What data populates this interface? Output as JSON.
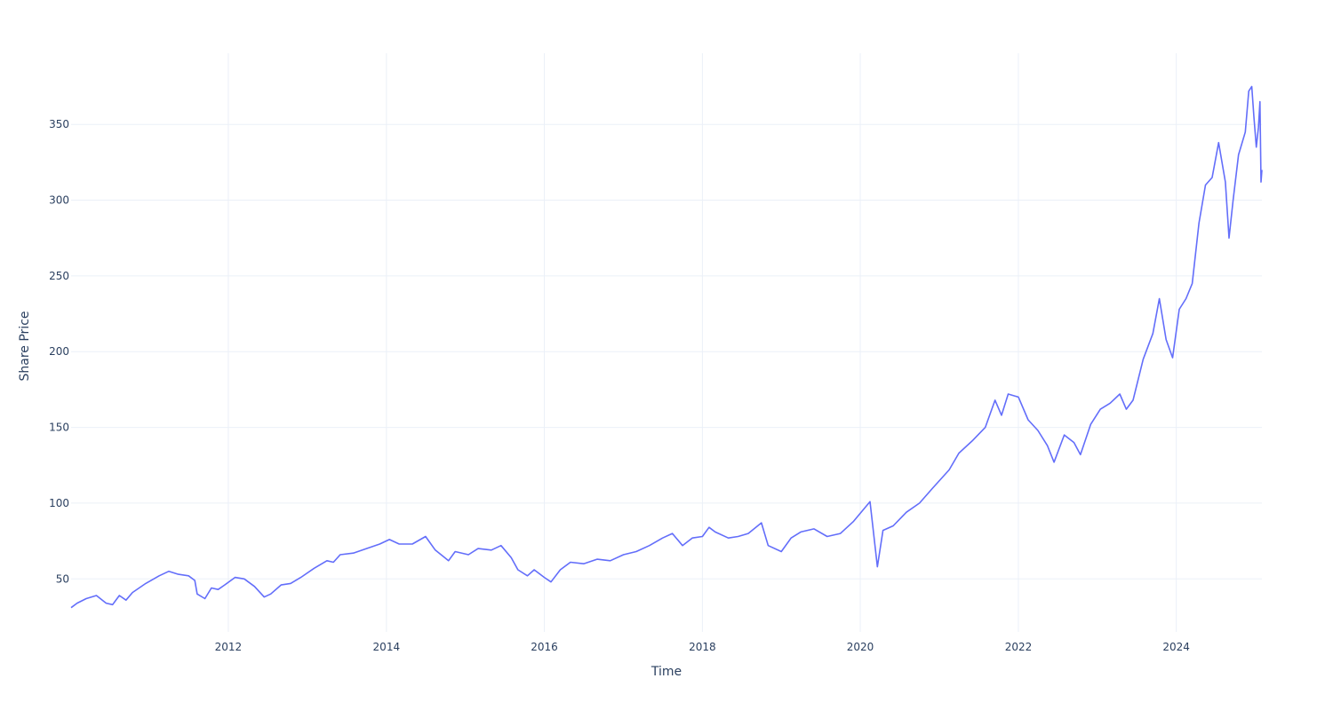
{
  "chart_data": {
    "type": "line",
    "xlabel": "Time",
    "ylabel": "Share Price",
    "x_ticks": [
      "2012",
      "2014",
      "2016",
      "2018",
      "2020",
      "2022",
      "2024"
    ],
    "y_ticks": [
      50,
      100,
      150,
      200,
      250,
      300,
      350
    ],
    "xlim": [
      "2010-01-04",
      "2025-01-31"
    ],
    "ylim": [
      15,
      397
    ],
    "grid": true,
    "legend": "none",
    "series": [
      {
        "color": "#636efa",
        "points": [
          [
            "2010-01-04",
            31
          ],
          [
            "2010-02-01",
            34
          ],
          [
            "2010-03-15",
            37
          ],
          [
            "2010-05-01",
            39
          ],
          [
            "2010-06-15",
            34
          ],
          [
            "2010-07-15",
            33
          ],
          [
            "2010-08-15",
            39
          ],
          [
            "2010-09-15",
            36
          ],
          [
            "2010-10-15",
            41
          ],
          [
            "2010-12-15",
            47
          ],
          [
            "2011-02-15",
            52
          ],
          [
            "2011-04-01",
            55
          ],
          [
            "2011-05-15",
            53
          ],
          [
            "2011-07-01",
            52
          ],
          [
            "2011-07-30",
            49
          ],
          [
            "2011-08-10",
            40
          ],
          [
            "2011-09-15",
            37
          ],
          [
            "2011-10-15",
            44
          ],
          [
            "2011-11-15",
            43
          ],
          [
            "2011-12-15",
            46
          ],
          [
            "2012-02-01",
            51
          ],
          [
            "2012-03-15",
            50
          ],
          [
            "2012-05-01",
            45
          ],
          [
            "2012-06-15",
            38
          ],
          [
            "2012-07-15",
            40
          ],
          [
            "2012-09-01",
            46
          ],
          [
            "2012-10-15",
            47
          ],
          [
            "2012-12-01",
            51
          ],
          [
            "2013-02-01",
            57
          ],
          [
            "2013-04-01",
            62
          ],
          [
            "2013-05-01",
            61
          ],
          [
            "2013-06-01",
            66
          ],
          [
            "2013-08-01",
            67
          ],
          [
            "2013-10-01",
            70
          ],
          [
            "2013-12-01",
            73
          ],
          [
            "2014-01-15",
            76
          ],
          [
            "2014-03-01",
            73
          ],
          [
            "2014-05-01",
            73
          ],
          [
            "2014-07-01",
            78
          ],
          [
            "2014-08-15",
            69
          ],
          [
            "2014-10-15",
            62
          ],
          [
            "2014-11-15",
            68
          ],
          [
            "2015-01-15",
            66
          ],
          [
            "2015-03-01",
            70
          ],
          [
            "2015-05-01",
            69
          ],
          [
            "2015-06-15",
            72
          ],
          [
            "2015-08-01",
            64
          ],
          [
            "2015-09-01",
            56
          ],
          [
            "2015-10-15",
            52
          ],
          [
            "2015-11-15",
            56
          ],
          [
            "2016-01-01",
            51
          ],
          [
            "2016-02-01",
            48
          ],
          [
            "2016-03-15",
            56
          ],
          [
            "2016-05-01",
            61
          ],
          [
            "2016-07-01",
            60
          ],
          [
            "2016-09-01",
            63
          ],
          [
            "2016-11-01",
            62
          ],
          [
            "2017-01-01",
            66
          ],
          [
            "2017-03-01",
            68
          ],
          [
            "2017-05-01",
            72
          ],
          [
            "2017-07-01",
            77
          ],
          [
            "2017-08-15",
            80
          ],
          [
            "2017-10-01",
            72
          ],
          [
            "2017-11-15",
            77
          ],
          [
            "2018-01-01",
            78
          ],
          [
            "2018-02-01",
            84
          ],
          [
            "2018-03-01",
            81
          ],
          [
            "2018-05-01",
            77
          ],
          [
            "2018-06-15",
            78
          ],
          [
            "2018-08-01",
            80
          ],
          [
            "2018-10-01",
            87
          ],
          [
            "2018-11-01",
            72
          ],
          [
            "2019-01-01",
            68
          ],
          [
            "2019-02-15",
            77
          ],
          [
            "2019-04-01",
            81
          ],
          [
            "2019-06-01",
            83
          ],
          [
            "2019-08-01",
            78
          ],
          [
            "2019-10-01",
            80
          ],
          [
            "2019-12-01",
            88
          ],
          [
            "2020-02-15",
            101
          ],
          [
            "2020-03-20",
            58
          ],
          [
            "2020-04-15",
            82
          ],
          [
            "2020-06-01",
            85
          ],
          [
            "2020-08-01",
            94
          ],
          [
            "2020-10-01",
            100
          ],
          [
            "2020-12-01",
            110
          ],
          [
            "2021-02-15",
            122
          ],
          [
            "2021-04-01",
            133
          ],
          [
            "2021-06-01",
            141
          ],
          [
            "2021-08-01",
            150
          ],
          [
            "2021-09-15",
            168
          ],
          [
            "2021-10-15",
            158
          ],
          [
            "2021-11-15",
            172
          ],
          [
            "2022-01-01",
            170
          ],
          [
            "2022-02-15",
            155
          ],
          [
            "2022-04-01",
            148
          ],
          [
            "2022-05-15",
            138
          ],
          [
            "2022-06-15",
            127
          ],
          [
            "2022-08-01",
            145
          ],
          [
            "2022-09-15",
            140
          ],
          [
            "2022-10-15",
            132
          ],
          [
            "2022-12-01",
            152
          ],
          [
            "2023-01-15",
            162
          ],
          [
            "2023-03-01",
            166
          ],
          [
            "2023-04-15",
            172
          ],
          [
            "2023-05-15",
            162
          ],
          [
            "2023-06-15",
            168
          ],
          [
            "2023-08-01",
            195
          ],
          [
            "2023-09-15",
            212
          ],
          [
            "2023-10-15",
            235
          ],
          [
            "2023-11-15",
            208
          ],
          [
            "2023-12-15",
            196
          ],
          [
            "2024-01-15",
            228
          ],
          [
            "2024-02-15",
            235
          ],
          [
            "2024-03-15",
            245
          ],
          [
            "2024-04-15",
            285
          ],
          [
            "2024-05-15",
            310
          ],
          [
            "2024-06-15",
            315
          ],
          [
            "2024-07-15",
            338
          ],
          [
            "2024-08-15",
            312
          ],
          [
            "2024-09-01",
            275
          ],
          [
            "2024-09-20",
            300
          ],
          [
            "2024-10-15",
            330
          ],
          [
            "2024-11-15",
            345
          ],
          [
            "2024-12-01",
            372
          ],
          [
            "2024-12-15",
            375
          ],
          [
            "2024-12-25",
            355
          ],
          [
            "2025-01-05",
            335
          ],
          [
            "2025-01-15",
            348
          ],
          [
            "2025-01-22",
            365
          ],
          [
            "2025-01-27",
            312
          ],
          [
            "2025-01-31",
            320
          ]
        ]
      }
    ]
  }
}
